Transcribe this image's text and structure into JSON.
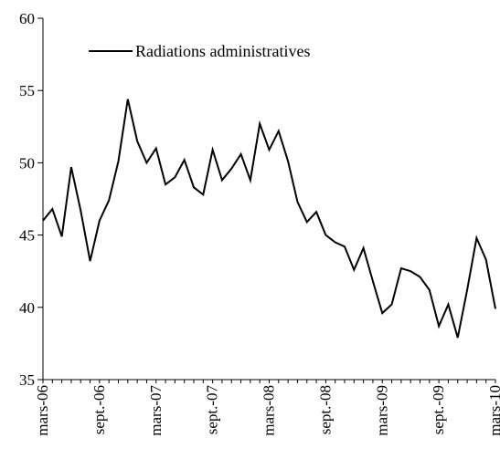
{
  "chart_data": {
    "type": "line",
    "title": "",
    "xlabel": "",
    "ylabel": "",
    "ylim": [
      35,
      60
    ],
    "y_ticks": [
      35,
      40,
      45,
      50,
      55,
      60
    ],
    "grid": false,
    "legend_position": "top-left",
    "x_tick_labels": [
      "mars-06",
      "sept.-06",
      "mars-07",
      "sept.-07",
      "mars-08",
      "sept.-08",
      "mars-09",
      "sept.-09",
      "mars-10"
    ],
    "x": [
      "mars-06",
      "avr.-06",
      "mai-06",
      "juin-06",
      "juil.-06",
      "août-06",
      "sept.-06",
      "oct.-06",
      "nov.-06",
      "déc.-06",
      "janv.-07",
      "févr.-07",
      "mars-07",
      "avr.-07",
      "mai-07",
      "juin-07",
      "juil.-07",
      "août-07",
      "sept.-07",
      "oct.-07",
      "nov.-07",
      "déc.-07",
      "janv.-08",
      "févr.-08",
      "mars-08",
      "avr.-08",
      "mai-08",
      "juin-08",
      "juil.-08",
      "août-08",
      "sept.-08",
      "oct.-08",
      "nov.-08",
      "déc.-08",
      "janv.-09",
      "févr.-09",
      "mars-09",
      "avr.-09",
      "mai-09",
      "juin-09",
      "juil.-09",
      "août-09",
      "sept.-09",
      "oct.-09",
      "nov.-09",
      "déc.-09",
      "janv.-10",
      "févr.-10",
      "mars-10"
    ],
    "series": [
      {
        "name": "Radiations administratives",
        "color": "#000000",
        "values": [
          46.0,
          46.8,
          44.9,
          49.7,
          46.7,
          43.2,
          46.0,
          47.4,
          50.1,
          54.4,
          51.5,
          50.0,
          51.0,
          48.5,
          49.0,
          50.2,
          48.3,
          47.8,
          50.9,
          48.8,
          49.6,
          50.6,
          48.8,
          52.7,
          50.9,
          52.2,
          50.1,
          47.3,
          45.9,
          46.6,
          45.0,
          44.5,
          44.2,
          42.6,
          44.1,
          41.8,
          39.6,
          40.2,
          42.7,
          42.5,
          42.1,
          41.2,
          38.7,
          40.2,
          37.9,
          41.2,
          44.8,
          43.3,
          39.9
        ]
      }
    ]
  }
}
